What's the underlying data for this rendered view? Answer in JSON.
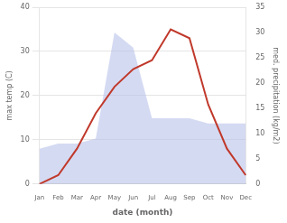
{
  "chart_data": {
    "type": "line",
    "categories": [
      "Jan",
      "Feb",
      "Mar",
      "Apr",
      "May",
      "Jun",
      "Jul",
      "Aug",
      "Sep",
      "Oct",
      "Nov",
      "Dec"
    ],
    "xlabel": "date (month)",
    "ylabel": "max temp (C)",
    "y2label": "med. precipitation (kg/m2)",
    "series": [
      {
        "type": "area",
        "color": "#b0bce8",
        "axis": "y2",
        "values": [
          7,
          8,
          8,
          9,
          30,
          27,
          13,
          13,
          13,
          12,
          12,
          12
        ]
      },
      {
        "type": "line",
        "color": "#c0392b",
        "values": [
          0,
          2,
          8,
          16,
          22,
          26,
          28,
          35,
          33,
          18,
          8,
          2
        ]
      }
    ],
    "ylim": [
      0,
      40
    ],
    "yticks": [
      0,
      10,
      20,
      30,
      40
    ],
    "y2lim": [
      0,
      35
    ],
    "y2ticks": [
      0,
      5,
      10,
      15,
      20,
      25,
      30,
      35
    ],
    "grid": true
  }
}
